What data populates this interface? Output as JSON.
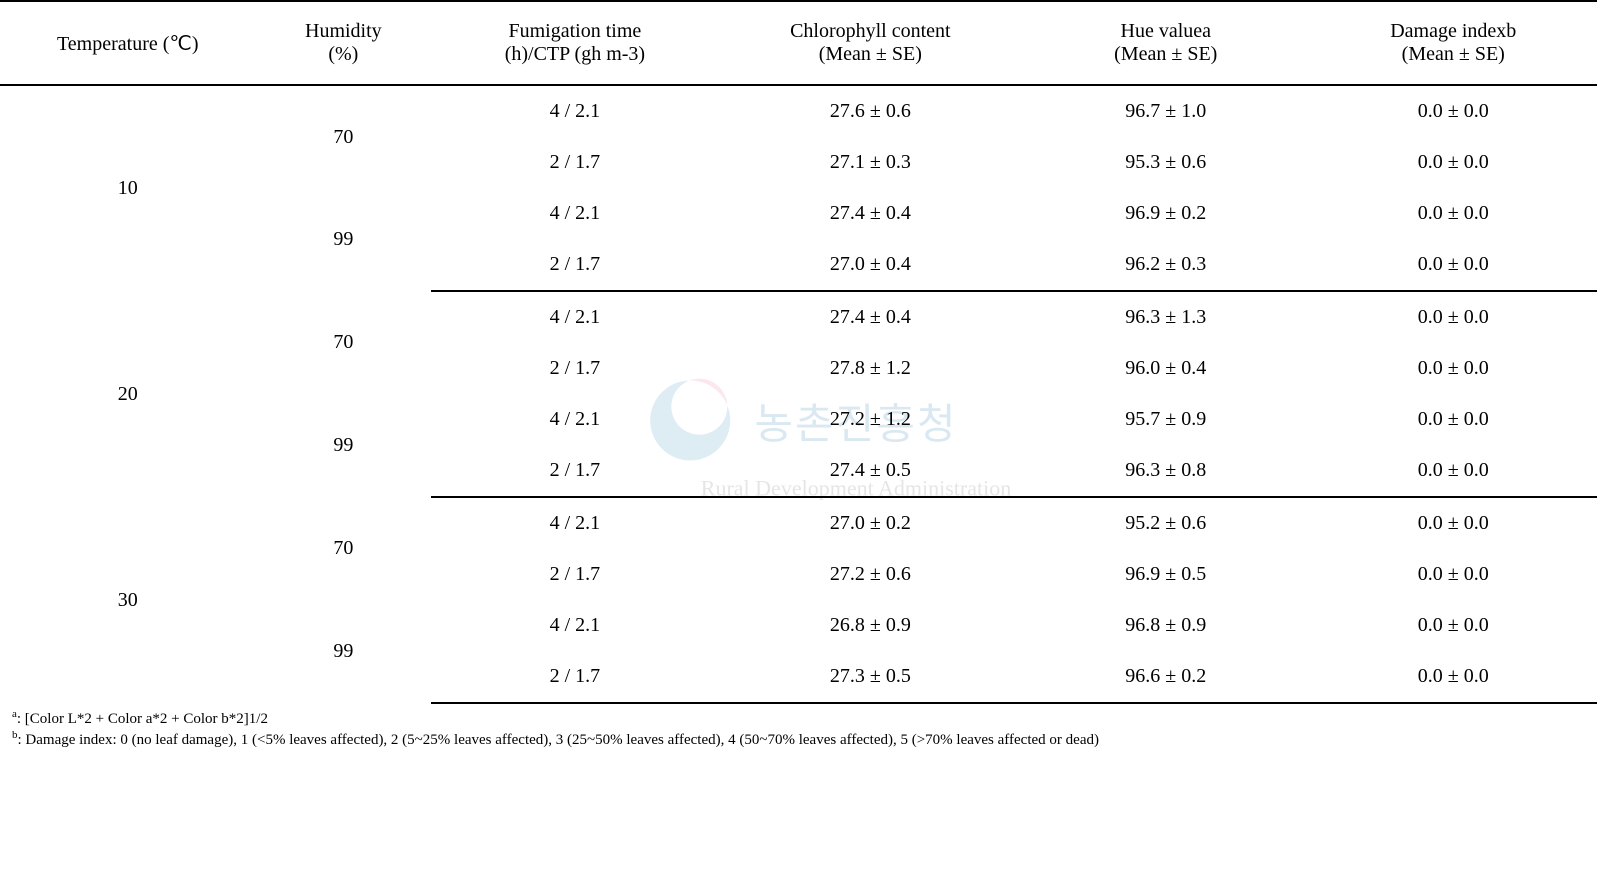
{
  "table": {
    "headers": {
      "temperature": "Temperature (℃)",
      "humidity": "Humidity\n(%)",
      "fumigation": "Fumigation time\n(h)/CTP (gh m-3)",
      "chlorophyll": "Chlorophyll content\n(Mean ± SE)",
      "hue": "Hue valuea\n(Mean ± SE)",
      "damage": "Damage indexb\n(Mean ± SE)"
    },
    "groups": [
      {
        "temperature": "10",
        "subgroups": [
          {
            "humidity": "70",
            "rows": [
              {
                "fumigation": "4 / 2.1",
                "chlorophyll": "27.6 ± 0.6",
                "hue": "96.7 ± 1.0",
                "damage": "0.0 ± 0.0"
              },
              {
                "fumigation": "2 / 1.7",
                "chlorophyll": "27.1 ± 0.3",
                "hue": "95.3 ± 0.6",
                "damage": "0.0 ± 0.0"
              }
            ]
          },
          {
            "humidity": "99",
            "rows": [
              {
                "fumigation": "4 / 2.1",
                "chlorophyll": "27.4 ± 0.4",
                "hue": "96.9 ± 0.2",
                "damage": "0.0 ± 0.0"
              },
              {
                "fumigation": "2 / 1.7",
                "chlorophyll": "27.0 ± 0.4",
                "hue": "96.2 ± 0.3",
                "damage": "0.0 ± 0.0"
              }
            ]
          }
        ]
      },
      {
        "temperature": "20",
        "subgroups": [
          {
            "humidity": "70",
            "rows": [
              {
                "fumigation": "4 / 2.1",
                "chlorophyll": "27.4 ± 0.4",
                "hue": "96.3 ± 1.3",
                "damage": "0.0 ± 0.0"
              },
              {
                "fumigation": "2 / 1.7",
                "chlorophyll": "27.8 ± 1.2",
                "hue": "96.0 ± 0.4",
                "damage": "0.0 ± 0.0"
              }
            ]
          },
          {
            "humidity": "99",
            "rows": [
              {
                "fumigation": "4 / 2.1",
                "chlorophyll": "27.2 ± 1.2",
                "hue": "95.7 ± 0.9",
                "damage": "0.0 ± 0.0"
              },
              {
                "fumigation": "2 / 1.7",
                "chlorophyll": "27.4 ± 0.5",
                "hue": "96.3 ± 0.8",
                "damage": "0.0 ± 0.0"
              }
            ]
          }
        ]
      },
      {
        "temperature": "30",
        "subgroups": [
          {
            "humidity": "70",
            "rows": [
              {
                "fumigation": "4 / 2.1",
                "chlorophyll": "27.0 ± 0.2",
                "hue": "95.2 ± 0.6",
                "damage": "0.0 ± 0.0"
              },
              {
                "fumigation": "2 / 1.7",
                "chlorophyll": "27.2 ± 0.6",
                "hue": "96.9 ± 0.5",
                "damage": "0.0 ± 0.0"
              }
            ]
          },
          {
            "humidity": "99",
            "rows": [
              {
                "fumigation": "4 / 2.1",
                "chlorophyll": "26.8 ± 0.9",
                "hue": "96.8 ± 0.9",
                "damage": "0.0 ± 0.0"
              },
              {
                "fumigation": "2 / 1.7",
                "chlorophyll": "27.3 ± 0.5",
                "hue": "96.6 ± 0.2",
                "damage": "0.0 ± 0.0"
              }
            ]
          }
        ]
      }
    ]
  },
  "footnotes": {
    "a": ": [Color L*2 + Color a*2 + Color b*2]1/2",
    "b": ": Damage index: 0 (no leaf damage), 1 (<5% leaves affected), 2 (5~25% leaves affected), 3 (25~50% leaves affected), 4 (50~70% leaves affected), 5 (>70% leaves affected or dead)"
  },
  "watermark": {
    "korean": "농촌진흥청",
    "english": "Rural Development Administration",
    "colors": {
      "pink": "#f4a6b8",
      "blue": "#7fb5d5",
      "text_blue": "#6da8c8",
      "text_gray": "#999999"
    }
  },
  "style": {
    "font_family": "Times New Roman, serif",
    "font_size_body": 20,
    "font_size_footnote": 15,
    "background_color": "#ffffff",
    "text_color": "#000000",
    "border_color": "#000000",
    "border_thick": 2,
    "border_thin": 1
  }
}
